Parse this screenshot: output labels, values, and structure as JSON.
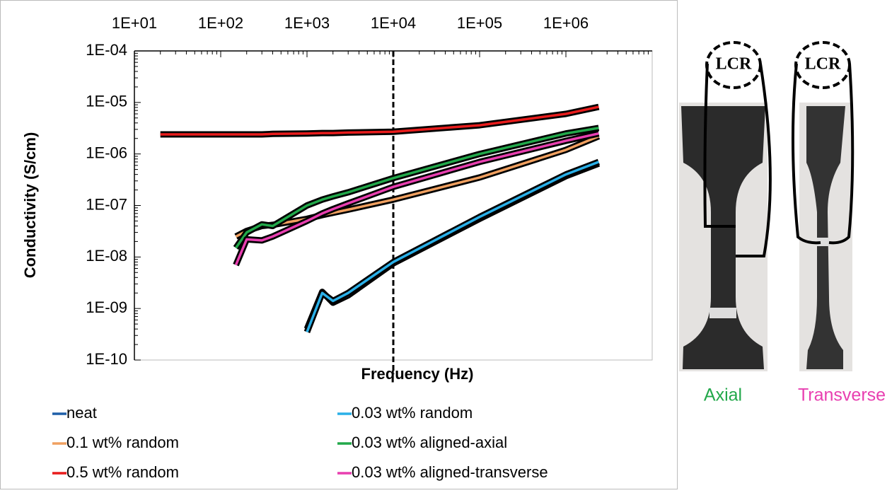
{
  "chart_data": {
    "type": "line",
    "xlabel": "Frequency (Hz)",
    "ylabel": "Conductivity (S/cm)",
    "xscale": "log",
    "yscale": "log",
    "xlim": [
      10,
      10000000
    ],
    "ylim": [
      1e-10,
      0.0001
    ],
    "xticks": [
      {
        "value": 10,
        "label": "1E+01"
      },
      {
        "value": 100,
        "label": "1E+02"
      },
      {
        "value": 1000,
        "label": "1E+03"
      },
      {
        "value": 10000,
        "label": "1E+04"
      },
      {
        "value": 100000,
        "label": "1E+05"
      },
      {
        "value": 1000000,
        "label": "1E+06"
      }
    ],
    "yticks": [
      {
        "value": 0.0001,
        "label": "1E-04"
      },
      {
        "value": 1e-05,
        "label": "1E-05"
      },
      {
        "value": 1e-06,
        "label": "1E-06"
      },
      {
        "value": 1e-07,
        "label": "1E-07"
      },
      {
        "value": 1e-08,
        "label": "1E-08"
      },
      {
        "value": 1e-09,
        "label": "1E-09"
      },
      {
        "value": 1e-10,
        "label": "1E-10"
      }
    ],
    "vline": 10000,
    "x": [
      20,
      50,
      100,
      150,
      200,
      300,
      400,
      1000,
      1500,
      2000,
      3000,
      10000,
      100000,
      1000000,
      2400000
    ],
    "series": [
      {
        "name": "neat",
        "color": "#1f5fa8",
        "values": [
          null,
          null,
          null,
          null,
          null,
          null,
          null,
          4e-10,
          2.1e-09,
          1.3e-09,
          1.8e-09,
          7.5e-09,
          5.5e-08,
          3.7e-07,
          6.5e-07
        ]
      },
      {
        "name": "0.03 wt% random",
        "color": "#2ab0e8",
        "values": [
          null,
          null,
          null,
          null,
          null,
          null,
          null,
          3.5e-10,
          2e-09,
          1.4e-09,
          2e-09,
          8e-09,
          6e-08,
          4e-07,
          7e-07
        ]
      },
      {
        "name": "0.1 wt% random",
        "color": "#f0a060",
        "values": [
          null,
          null,
          null,
          2.5e-08,
          3.2e-08,
          4e-08,
          4.2e-08,
          5.5e-08,
          6.5e-08,
          7.2e-08,
          8.3e-08,
          1.3e-07,
          3.5e-07,
          1.2e-06,
          2.2e-06
        ]
      },
      {
        "name": "0.03 wt% aligned-axial",
        "color": "#22a84a",
        "values": [
          null,
          null,
          null,
          1.5e-08,
          3e-08,
          4.3e-08,
          4e-08,
          1e-07,
          1.3e-07,
          1.5e-07,
          1.8e-07,
          3.4e-07,
          1e-06,
          2.5e-06,
          3.2e-06
        ]
      },
      {
        "name": "0.5 wt% random",
        "color": "#e81c1c",
        "values": [
          2.4e-06,
          2.4e-06,
          2.4e-06,
          2.4e-06,
          2.4e-06,
          2.4e-06,
          2.45e-06,
          2.5e-06,
          2.55e-06,
          2.55e-06,
          2.6e-06,
          2.7e-06,
          3.6e-06,
          6e-06,
          8.2e-06
        ]
      },
      {
        "name": "0.03 wt% aligned-transverse",
        "color": "#e83fb0",
        "values": [
          null,
          null,
          null,
          7e-09,
          2.2e-08,
          2.1e-08,
          2.5e-08,
          5e-08,
          7e-08,
          8.5e-08,
          1.1e-07,
          2.3e-07,
          7e-07,
          1.8e-06,
          2.5e-06
        ]
      }
    ]
  },
  "photo": {
    "panels": [
      {
        "meter": "LCR",
        "caption": "Axial"
      },
      {
        "meter": "LCR",
        "caption": "Transverse"
      }
    ]
  }
}
